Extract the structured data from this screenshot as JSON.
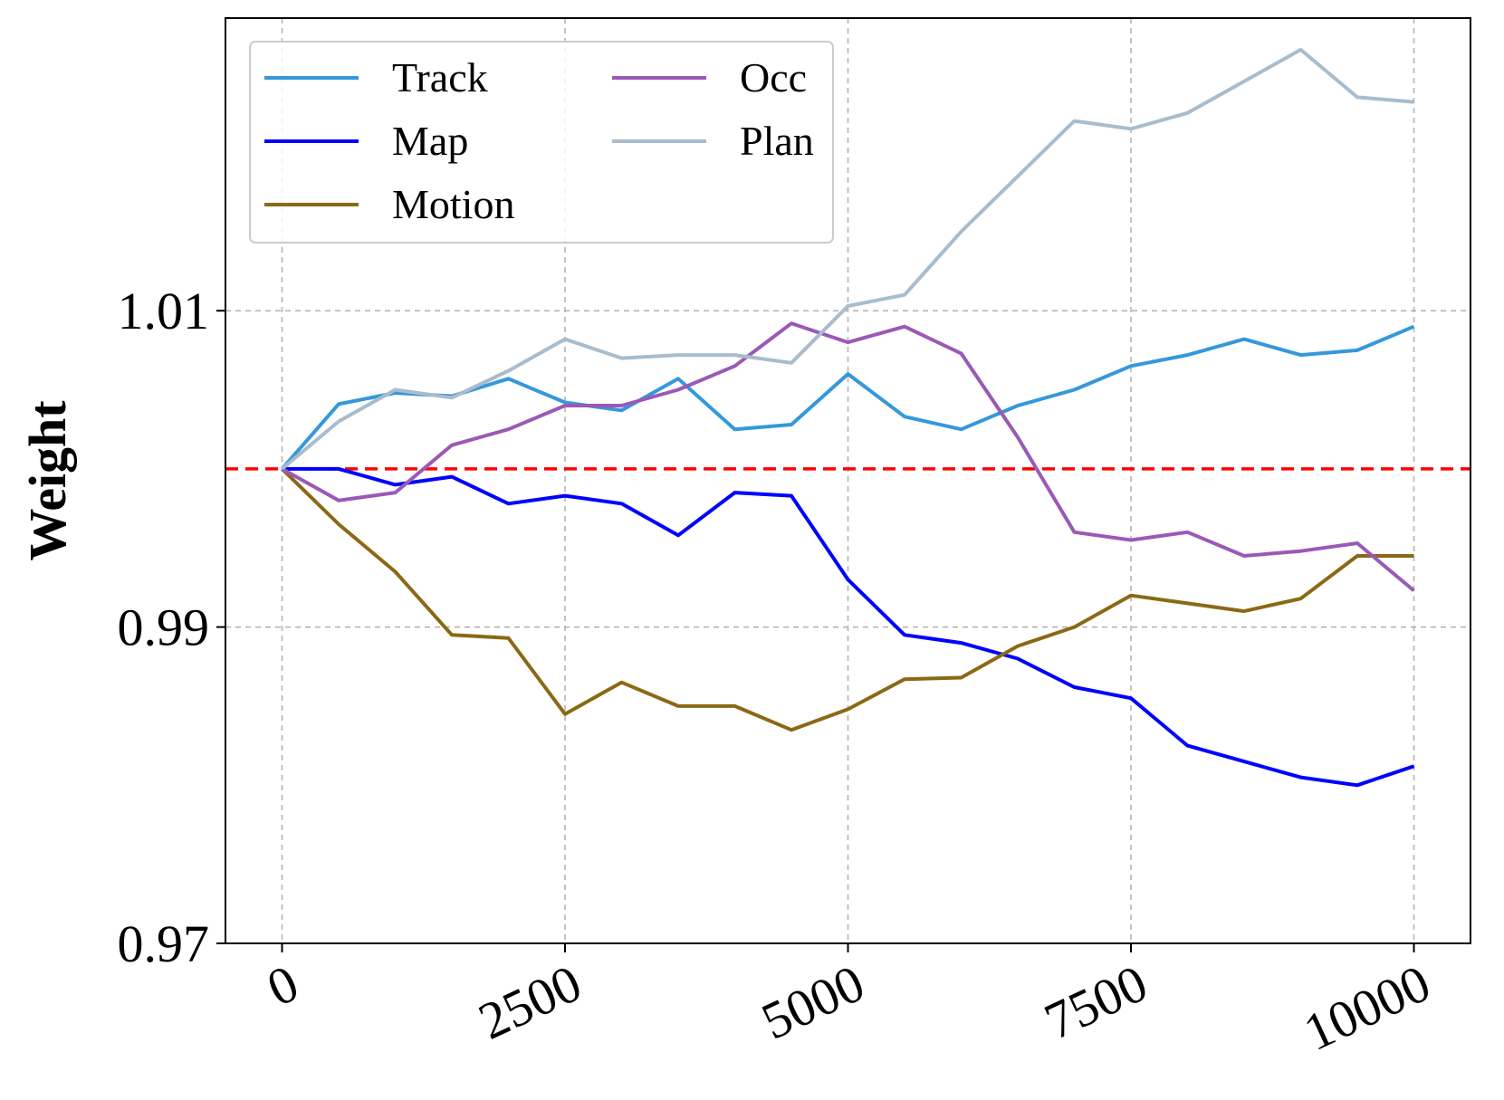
{
  "chart_data": {
    "type": "line",
    "title": "",
    "xlabel": "",
    "ylabel": "Weight",
    "xlim": [
      -500,
      10500
    ],
    "ylim": [
      0.97,
      1.0285
    ],
    "xticks": [
      0,
      2500,
      5000,
      7500,
      10000
    ],
    "xtick_labels": [
      "0",
      "2500",
      "5000",
      "7500",
      "10000"
    ],
    "yticks": [
      0.97,
      0.99,
      1.01
    ],
    "ytick_labels": [
      "0.97",
      "0.99",
      "1.01"
    ],
    "grid": true,
    "legend": "top-left",
    "reference_line": {
      "y": 1.0,
      "color": "#ff0000",
      "style": "dashed"
    },
    "series": [
      {
        "name": "Track",
        "color": "#3498db",
        "x": [
          0,
          500,
          1000,
          1500,
          2000,
          2500,
          3000,
          3500,
          4000,
          4500,
          5000,
          5500,
          6000,
          6500,
          7000,
          7500,
          8000,
          8500,
          9000,
          9500,
          10000
        ],
        "y": [
          1.0,
          1.0041,
          1.0048,
          1.0046,
          1.0057,
          1.0042,
          1.0037,
          1.0057,
          1.0025,
          1.0028,
          1.006,
          1.0033,
          1.0025,
          1.004,
          1.005,
          1.0065,
          1.0072,
          1.0082,
          1.0072,
          1.0075,
          1.009
        ]
      },
      {
        "name": "Map",
        "color": "#0000ff",
        "x": [
          0,
          500,
          1000,
          1500,
          2000,
          2500,
          3000,
          3500,
          4000,
          4500,
          5000,
          5500,
          6000,
          6500,
          7000,
          7500,
          8000,
          8500,
          9000,
          9500,
          10000
        ],
        "y": [
          1.0,
          1.0,
          0.999,
          0.9995,
          0.9978,
          0.9983,
          0.9978,
          0.9958,
          0.9985,
          0.9983,
          0.993,
          0.9895,
          0.989,
          0.988,
          0.9862,
          0.9855,
          0.9825,
          0.9815,
          0.9805,
          0.98,
          0.9812
        ]
      },
      {
        "name": "Motion",
        "color": "#8b6914",
        "x": [
          0,
          500,
          1000,
          1500,
          2000,
          2500,
          3000,
          3500,
          4000,
          4500,
          5000,
          5500,
          6000,
          6500,
          7000,
          7500,
          8000,
          8500,
          9000,
          9500,
          10000
        ],
        "y": [
          1.0,
          0.9965,
          0.9935,
          0.9895,
          0.9893,
          0.9845,
          0.9865,
          0.985,
          0.985,
          0.9835,
          0.9848,
          0.9867,
          0.9868,
          0.9888,
          0.99,
          0.992,
          0.9915,
          0.991,
          0.9918,
          0.9945,
          0.9945
        ]
      },
      {
        "name": "Occ",
        "color": "#9b59b6",
        "x": [
          0,
          500,
          1000,
          1500,
          2000,
          2500,
          3000,
          3500,
          4000,
          4500,
          5000,
          5500,
          6000,
          6500,
          7000,
          7500,
          8000,
          8500,
          9000,
          9500,
          10000
        ],
        "y": [
          1.0,
          0.998,
          0.9985,
          1.0015,
          1.0025,
          1.004,
          1.004,
          1.005,
          1.0065,
          1.0092,
          1.008,
          1.009,
          1.0073,
          1.002,
          0.996,
          0.9955,
          0.996,
          0.9945,
          0.9948,
          0.9953,
          0.9923
        ]
      },
      {
        "name": "Plan",
        "color": "#a8bccc",
        "x": [
          0,
          500,
          1000,
          1500,
          2000,
          2500,
          3000,
          3500,
          4000,
          4500,
          5000,
          5500,
          6000,
          6500,
          7000,
          7500,
          8000,
          8500,
          9000,
          9500,
          10000
        ],
        "y": [
          1.0,
          1.003,
          1.005,
          1.0045,
          1.0062,
          1.0082,
          1.007,
          1.0072,
          1.0072,
          1.0067,
          1.0103,
          1.011,
          1.015,
          1.0185,
          1.022,
          1.0215,
          1.0225,
          1.0245,
          1.0265,
          1.0235,
          1.0232
        ]
      }
    ]
  }
}
